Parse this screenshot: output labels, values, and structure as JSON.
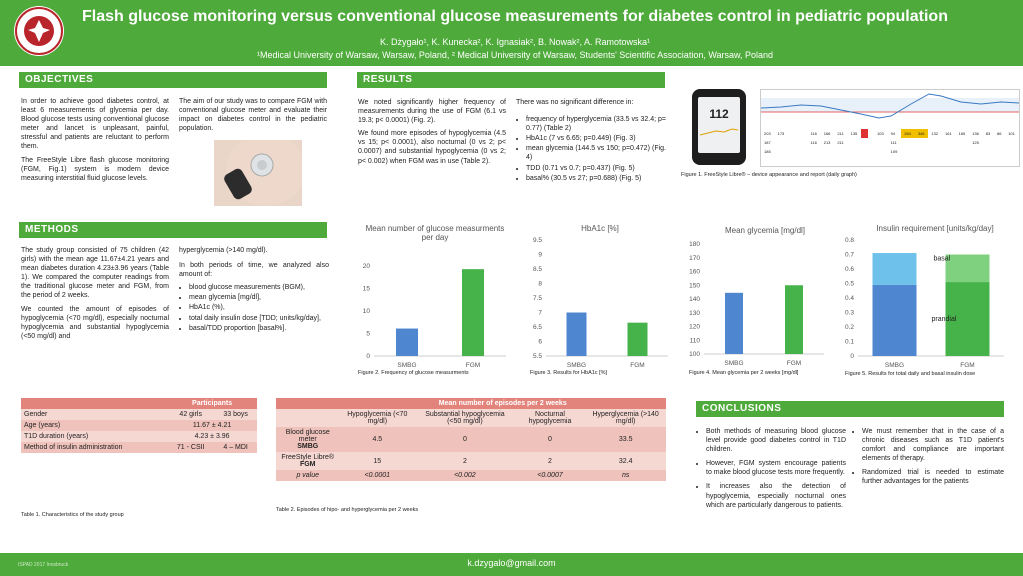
{
  "header": {
    "title": "Flash glucose monitoring versus conventional glucose measurements for diabetes control in pediatric population",
    "authors": "K. Dżygało¹, K. Kunecka², K. Ignasiak², B. Nowak², A. Ramotowska¹",
    "affiliations": "¹Medical University of Warsaw, Warsaw, Poland, ² Medical University of Warsaw, Students' Scientific Association, Warsaw, Poland"
  },
  "objectives": {
    "heading": "OBJECTIVES",
    "left": "In order to achieve good diabetes control, at least 6 measurements of glycemia per day. Blood glucose tests using conventional glucose meter and lancet is unpleasant, painful, stressful and patients are reluctant to perform them.",
    "left2": "The FreeStyle Libre flash glucose monitoring (FGM, Fig.1) system is modern device measuring interstitial fluid glucose levels.",
    "right": "The aim of our study was to compare FGM with conventional glucose meter and evaluate their impact on diabetes control in the pediatric population."
  },
  "results": {
    "heading": "RESULTS",
    "p1": "We noted significantly higher frequency of measurements during the use of FGM (6.1 vs 19.3; p< 0.0001) (Fig. 2).",
    "p2": "We found more episodes of hypoglycemia (4.5 vs 15; p< 0.0001), also nocturnal (0 vs 2; p< 0.0007) and substantial hypoglycemia (0 vs 2; p< 0.002) when FGM was in use (Table 2).",
    "nodiff": "There was no significant difference in:",
    "items": [
      "frequency of hyperglycemia (33.5 vs 32.4; p= 0.77) (Table 2)",
      "HbA1c (7 vs 6.65; p=0.449) (Fig. 3)",
      "mean glycemia (144.5 vs 150; p=0.472) (Fig. 4)",
      "TDD (0.71 vs 0.7; p=0.437) (Fig. 5)",
      "basal% (30.5 vs 27; p=0.688) (Fig. 5)"
    ]
  },
  "fig1": {
    "caption": "Figure 1. FreeStyle Libre® – device appearance and report (daily graph)",
    "reading": "112",
    "report_rows": [
      [
        "203",
        "173",
        "",
        "",
        "",
        "116",
        "166",
        "211",
        "135",
        "",
        "",
        "103",
        "94",
        "264",
        "346",
        "132",
        "161",
        "165",
        "136",
        "83",
        "86",
        "101"
      ],
      [
        "187",
        "",
        "",
        "",
        "",
        "116",
        "213",
        "211",
        "",
        "",
        "",
        "",
        "111",
        "",
        "",
        "",
        "",
        "",
        "125",
        "",
        "",
        ""
      ],
      [
        "185",
        "",
        "",
        "",
        "",
        "",
        "",
        "",
        "",
        "",
        "",
        "",
        "109",
        "",
        "",
        "",
        "",
        "",
        "",
        "",
        "",
        ""
      ]
    ]
  },
  "methods": {
    "heading": "METHODS",
    "p1": "The study group consisted of 75 children (42 girls) with the mean age 11.67±4.21 years and mean diabetes duration 4.23±3.96 years (Table 1). We compared the computer readings from the traditional glucose meter and FGM, from the period of 2 weeks.",
    "p2": "We counted the amount of episodes of hypoglycemia (<70 mg/dl), especially nocturnal hypoglycemia and substantial hypoglycemia (<50 mg/dl) and",
    "p3": "hyperglycemia (>140 mg/dl).",
    "p4": "In both periods of time, we analyzed also amount of:",
    "items": [
      "blood glucose measurements (BGM),",
      "mean glycemia [mg/dl],",
      "HbA1c (%),",
      "total daily insulin dose [TDD; units/kg/day],",
      "basal/TDD proportion [basal%]."
    ]
  },
  "chart_data": [
    {
      "type": "bar",
      "title": "Mean number of glucose measurments per day",
      "categories": [
        "SMBG",
        "FGM"
      ],
      "values": [
        6.1,
        19.3
      ],
      "ylim": [
        0,
        20
      ],
      "ticks": [
        "0",
        "5",
        "10",
        "15",
        "20"
      ],
      "caption": "Figure 2. Frequency of glucose measurments"
    },
    {
      "type": "bar",
      "title": "HbA1c [%]",
      "categories": [
        "SMBG",
        "FGM"
      ],
      "values": [
        7,
        6.65
      ],
      "ylim": [
        5.5,
        9.5
      ],
      "ticks": [
        "5.5",
        "6",
        "6.5",
        "7",
        "7.5",
        "8",
        "8.5",
        "9",
        "9.5"
      ],
      "caption": "Figure 3. Results for HbA1c [%]"
    },
    {
      "type": "bar",
      "title": "Mean glycemia [mg/dl]",
      "categories": [
        "SMBG",
        "FGM"
      ],
      "values": [
        144.5,
        150
      ],
      "ylim": [
        100,
        180
      ],
      "ticks": [
        "100",
        "110",
        "120",
        "130",
        "140",
        "150",
        "160",
        "170",
        "180"
      ],
      "caption": "Figure 4. Mean glycemia per 2 weeks [mg/dl]"
    },
    {
      "type": "bar",
      "title": "Insulin requirement [units/kg/day]",
      "categories": [
        "SMBG",
        "FGM"
      ],
      "series": [
        {
          "name": "prandial",
          "values": [
            0.49,
            0.51
          ]
        },
        {
          "name": "basal",
          "values": [
            0.22,
            0.19
          ]
        }
      ],
      "ylim": [
        0,
        0.8
      ],
      "ticks": [
        "0",
        "0.1",
        "0.2",
        "0.3",
        "0.4",
        "0.5",
        "0.6",
        "0.7",
        "0.8"
      ],
      "caption": "Figure 5. Results for total daily and basal insulin dose"
    }
  ],
  "table1": {
    "header": "Participants",
    "caption": "Table 1. Characteristics of the study group",
    "rows": [
      [
        "Gender",
        "42 girls",
        "33 boys"
      ],
      [
        "Age (years)",
        "11.67 ± 4.21"
      ],
      [
        "T1D duration (years)",
        "4.23 ± 3.96"
      ],
      [
        "Method of insulin administration",
        "71 - CSII",
        "4 – MDI"
      ]
    ]
  },
  "table2": {
    "header": "Mean number of episodes per 2 weeks",
    "caption": "Table 2. Episodes of hipo- and hyperglycemia per 2 weeks",
    "cols": [
      "Hypoglycemia (<70 mg/dl)",
      "Substantial hypoglycemia (<50 mg/dl)",
      "Nocturnal hypoglycemia",
      "Hyperglycemia (>140 mg/dl)"
    ],
    "rows": [
      {
        "label": "Blood glucose meter",
        "label2": "SMBG",
        "vals": [
          "4.5",
          "0",
          "0",
          "33.5"
        ]
      },
      {
        "label": "FreeStyle Libre® ",
        "label2": "FGM",
        "vals": [
          "15",
          "2",
          "2",
          "32.4"
        ]
      },
      {
        "label": "p value",
        "label2": "",
        "vals": [
          "<0.0001",
          "<0.002",
          "<0.0007",
          "ns"
        ]
      }
    ]
  },
  "conclusions": {
    "heading": "CONCLUSIONS",
    "left": [
      "Both methods of measuring blood glucose level provide good diabetes control in T1D children.",
      "However, FGM system encourage patients to make blood glucose tests more frequently.",
      "It increases also the detection of hypoglycemia, especially nocturnal ones which are particularly dangerous to patients."
    ],
    "right": [
      "We must remember that in the case of a chronic diseases such as T1D patient's comfort and compliance are important elements of therapy.",
      "Randomized trial is needed to estimate further advantages for the patients"
    ]
  },
  "footer": {
    "email": "k.dzygalo@gmail.com",
    "left": "ISPAD 2017 Innsbruck"
  },
  "colors": {
    "green": "#4eaa3a",
    "bar": "#4e86d0",
    "bar2": "#46b34a",
    "table": "#e3847c"
  }
}
